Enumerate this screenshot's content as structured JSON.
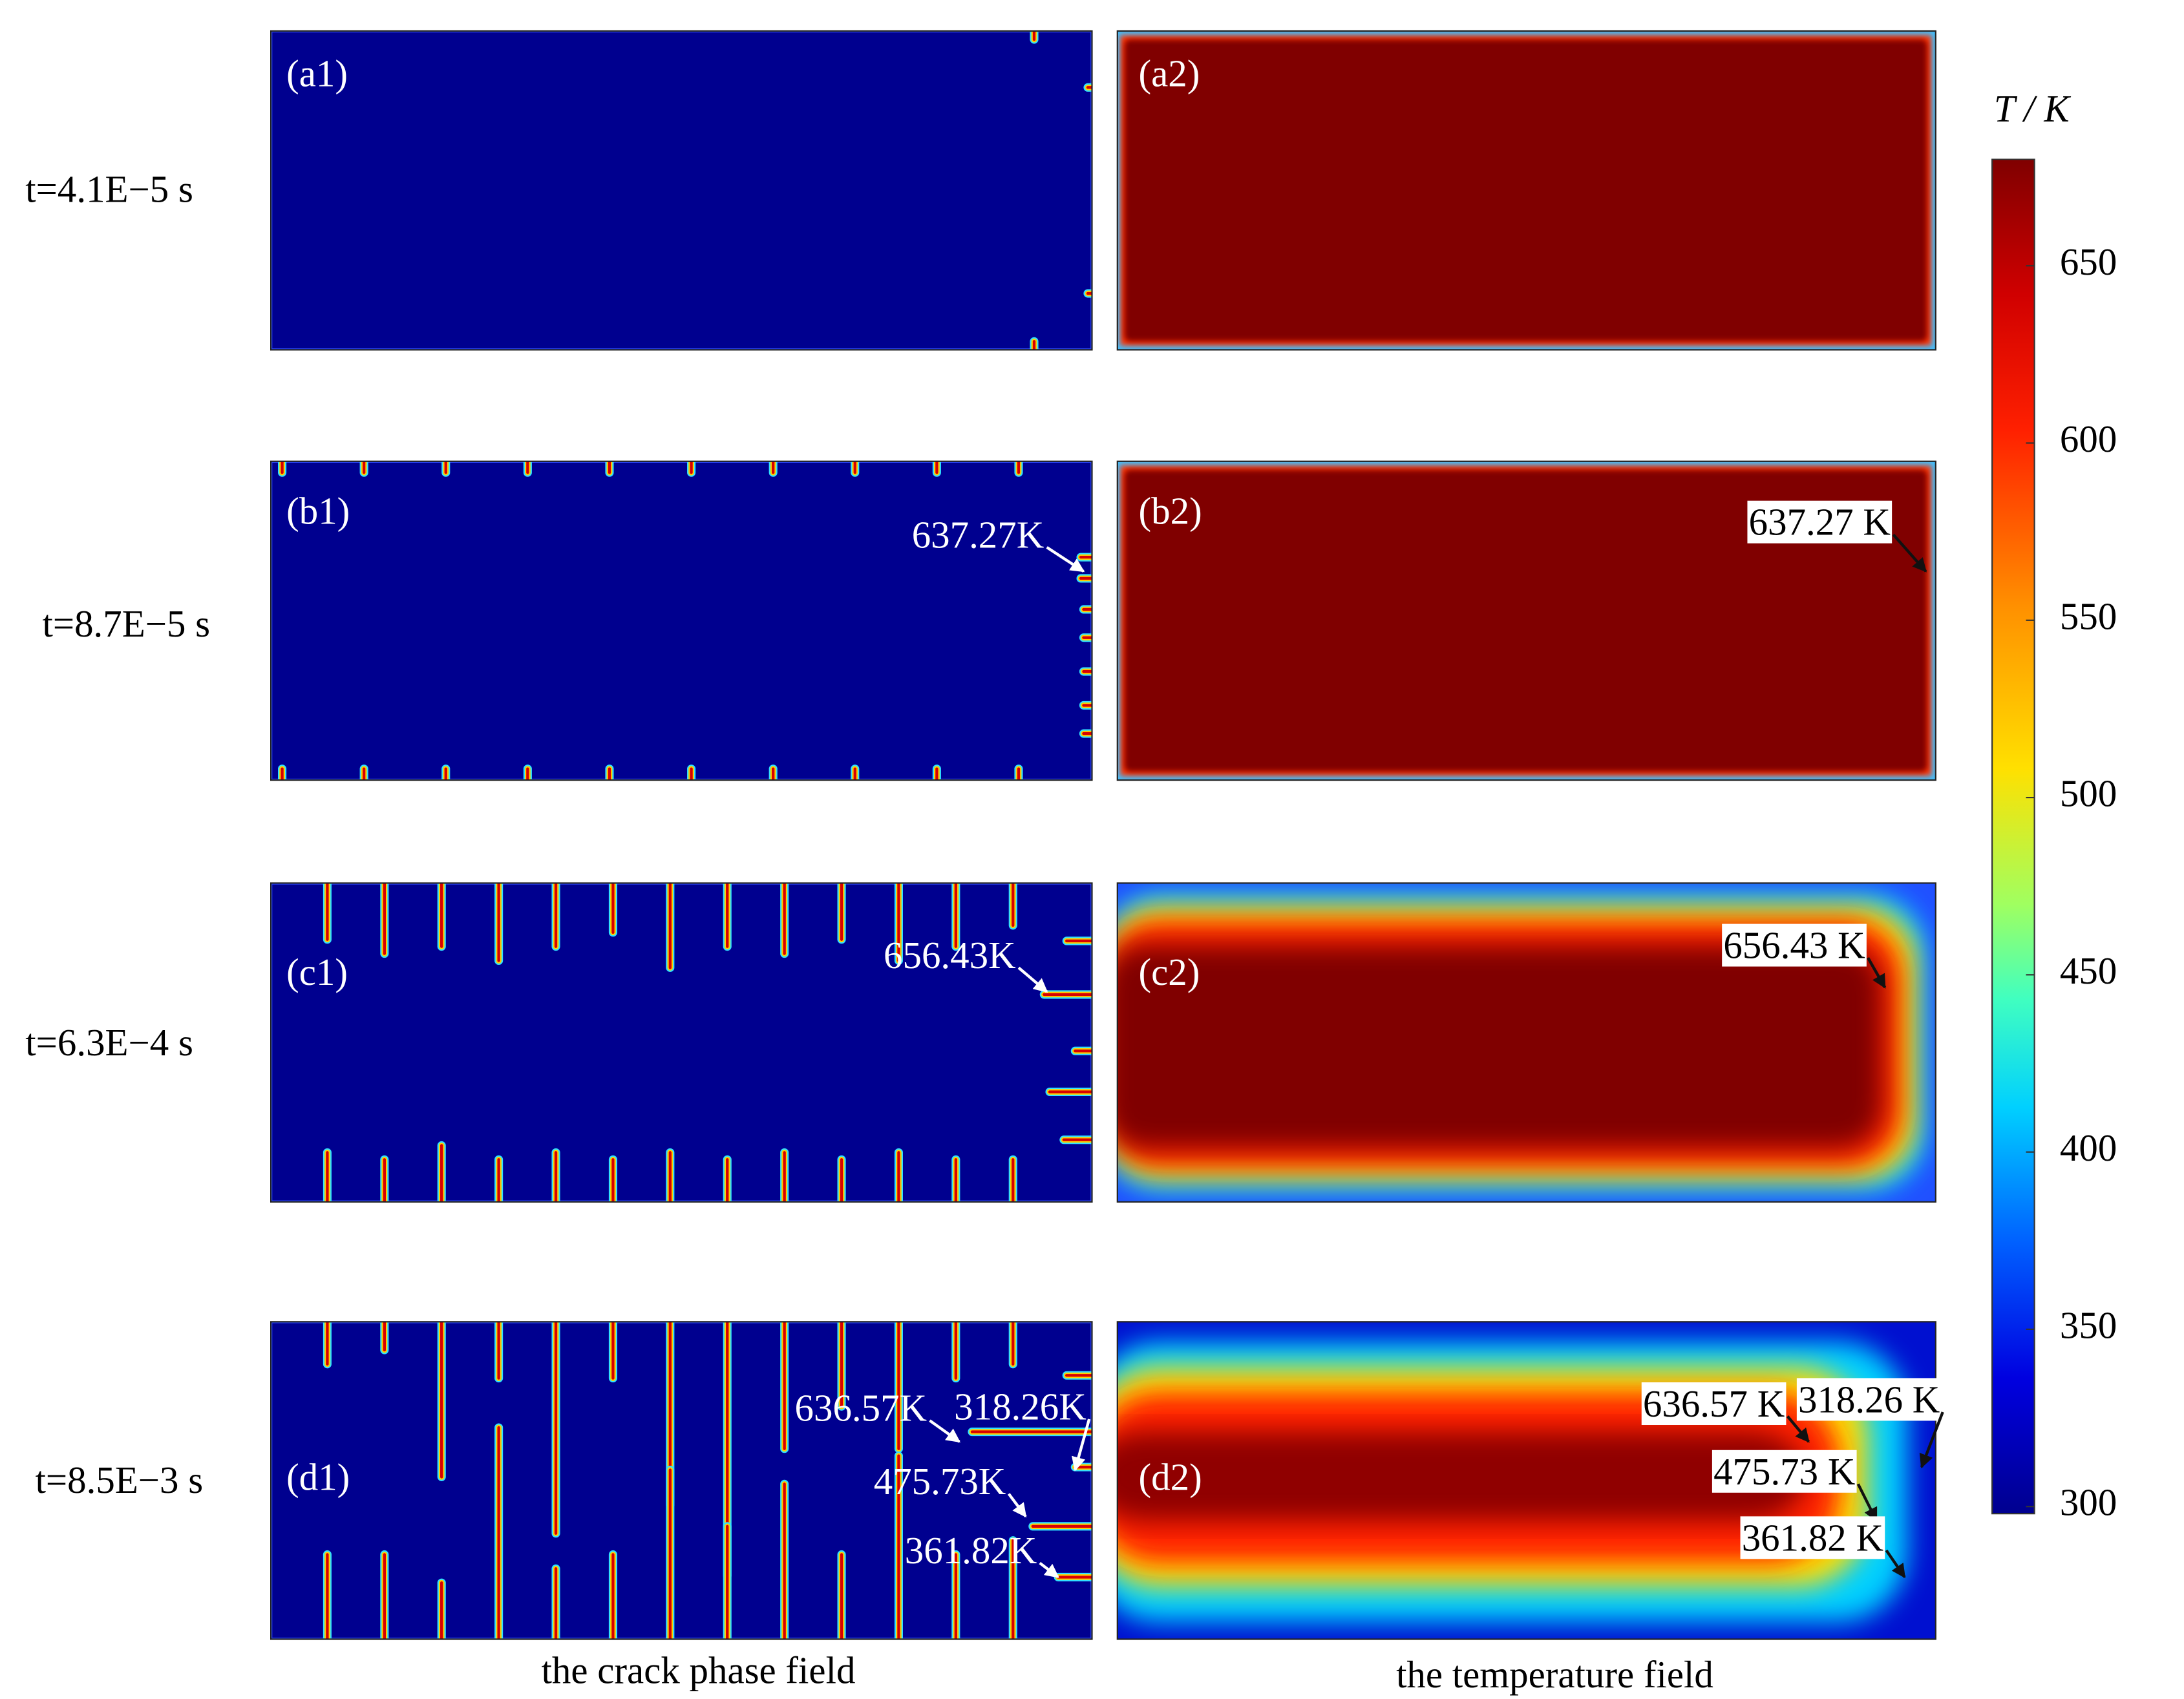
{
  "rows": [
    {
      "time": "t=4.1E−5 s",
      "left": {
        "label": "(a1)"
      },
      "right": {
        "label": "(a2)"
      }
    },
    {
      "time": "t=8.7E−5 s",
      "left": {
        "label": "(b1)",
        "annotations": [
          "637.27K"
        ]
      },
      "right": {
        "label": "(b2)",
        "annotations": [
          "637.27 K"
        ]
      }
    },
    {
      "time": "t=6.3E−4 s",
      "left": {
        "label": "(c1)",
        "annotations": [
          "656.43K"
        ]
      },
      "right": {
        "label": "(c2)",
        "annotations": [
          "656.43 K"
        ]
      }
    },
    {
      "time": "t=8.5E−3 s",
      "left": {
        "label": "(d1)",
        "annotations": [
          "636.57K",
          "318.26K",
          "475.73K",
          "361.82K"
        ]
      },
      "right": {
        "label": "(d2)",
        "annotations": [
          "636.57 K",
          "318.26 K",
          "475.73 K",
          "361.82 K"
        ]
      }
    }
  ],
  "captions": {
    "left": "the crack phase field",
    "right": "the temperature field"
  },
  "colorbar": {
    "label": "T / K",
    "lim": [
      298,
      680
    ],
    "ticks": [
      300,
      350,
      400,
      450,
      500,
      550,
      600,
      650
    ]
  }
}
